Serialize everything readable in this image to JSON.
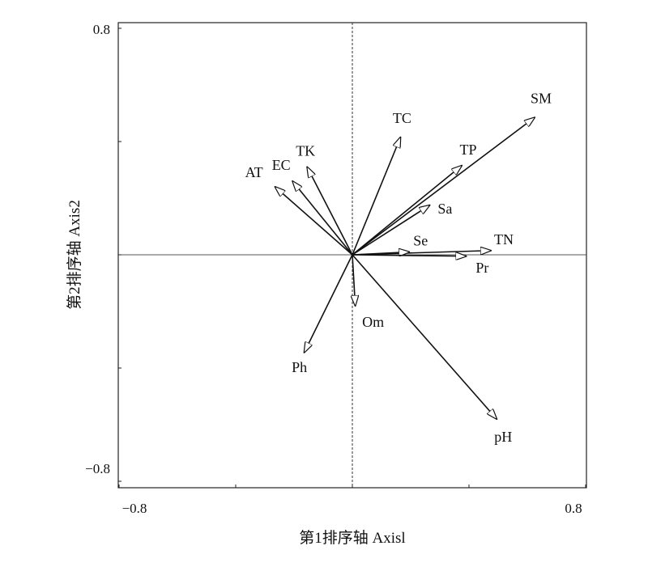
{
  "chart_data": {
    "type": "scatter",
    "subtype": "biplot-vectors",
    "title": "",
    "xlabel": "第1排序轴 Axisl",
    "ylabel": "第2排序轴 Axis2",
    "xlim": [
      -0.8,
      0.8
    ],
    "ylim": [
      -0.8,
      0.8
    ],
    "x_tick_labels": [
      "−0.8",
      "0.8"
    ],
    "y_tick_labels": [
      "0.8",
      "−0.8"
    ],
    "grid": false,
    "reference_lines": {
      "x": 0,
      "y": 0
    },
    "vectors": [
      {
        "label": "SM",
        "x": 0.625,
        "y": 0.485
      },
      {
        "label": "TC",
        "x": 0.165,
        "y": 0.415
      },
      {
        "label": "TP",
        "x": 0.375,
        "y": 0.315
      },
      {
        "label": "Sa",
        "x": 0.265,
        "y": 0.175
      },
      {
        "label": "TN",
        "x": 0.475,
        "y": 0.015
      },
      {
        "label": "Se",
        "x": 0.195,
        "y": 0.01
      },
      {
        "label": "Pr",
        "x": 0.39,
        "y": -0.005
      },
      {
        "label": "TK",
        "x": -0.155,
        "y": 0.31
      },
      {
        "label": "EC",
        "x": -0.205,
        "y": 0.26
      },
      {
        "label": "AT",
        "x": -0.265,
        "y": 0.24
      },
      {
        "label": "Om",
        "x": 0.01,
        "y": -0.18
      },
      {
        "label": "Ph",
        "x": -0.165,
        "y": -0.345
      },
      {
        "label": "pH",
        "x": 0.495,
        "y": -0.58
      }
    ]
  }
}
